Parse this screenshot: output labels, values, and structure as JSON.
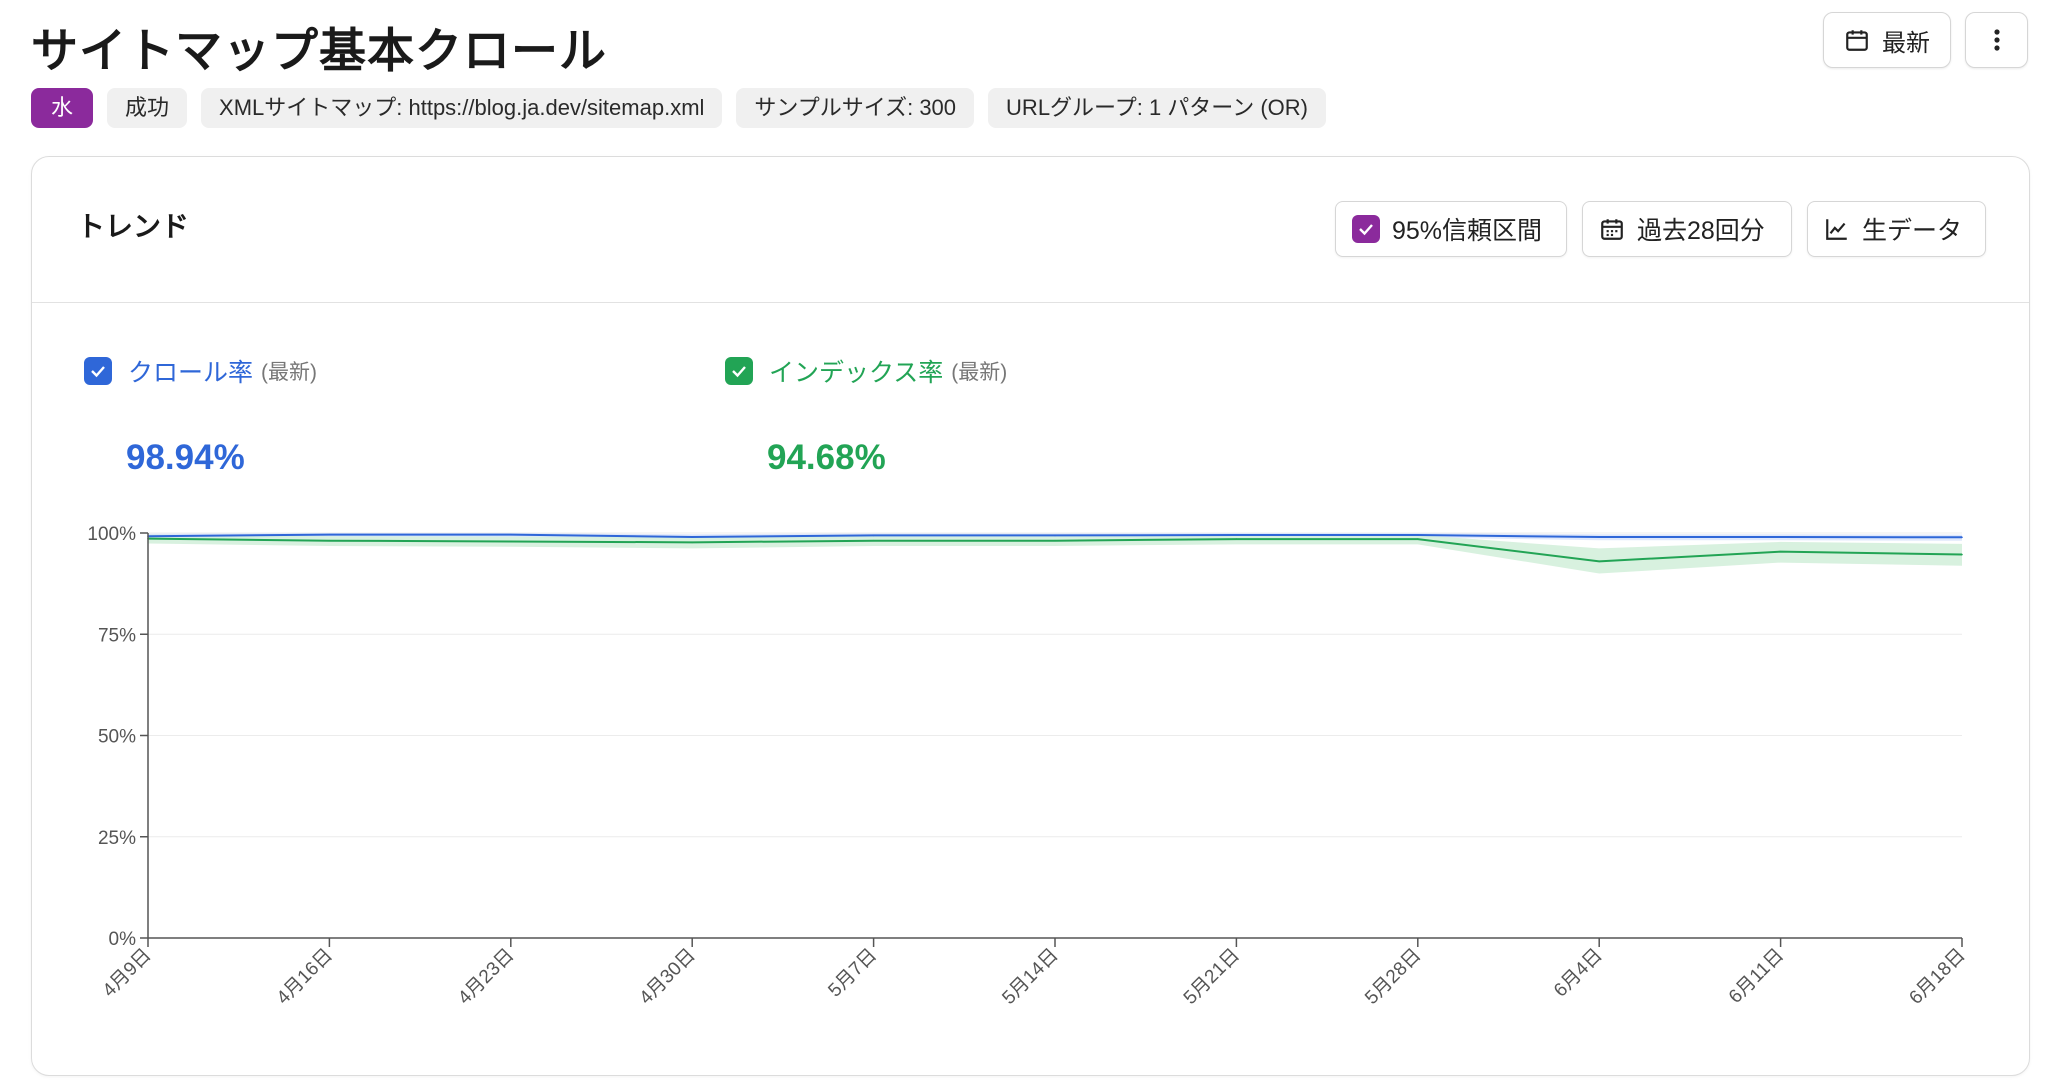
{
  "page": {
    "title": "サイトマップ基本クロール",
    "latest_button": "最新"
  },
  "tags": [
    "水",
    "成功",
    "XMLサイトマップ: https://blog.ja.dev/sitemap.xml",
    "サンプルサイズ: 300",
    "URLグループ: 1 パターン (OR)"
  ],
  "card": {
    "title": "トレンド",
    "ci_label": "95%信頼区間",
    "range_label": "過去28回分",
    "raw_label": "生データ"
  },
  "legend": {
    "crawl": {
      "name": "クロール率",
      "sub": "(最新)",
      "value": "98.94%"
    },
    "index": {
      "name": "インデックス率",
      "sub": "(最新)",
      "value": "94.68%"
    }
  },
  "colors": {
    "accent": "#8b2a9c",
    "crawl": "#2f67d8",
    "index": "#22a455",
    "crawl_band": "#dce6fb",
    "index_band": "#d4efdc"
  },
  "icons": {
    "latest": "calendar-icon",
    "more": "more-vertical-icon",
    "range": "calendar-grid-icon",
    "raw": "line-chart-icon",
    "check": "check-icon"
  },
  "chart_data": {
    "type": "line",
    "title": "トレンド",
    "ylim": [
      0,
      100
    ],
    "yticks": [
      0,
      25,
      50,
      75,
      100
    ],
    "ytick_labels": [
      "0%",
      "25%",
      "50%",
      "75%",
      "100%"
    ],
    "xticks": [
      "4月9日",
      "4月16日",
      "4月23日",
      "4月30日",
      "5月7日",
      "5月14日",
      "5月21日",
      "5月28日",
      "6月4日",
      "6月11日",
      "6月18日"
    ],
    "x": [
      0,
      7,
      14,
      21,
      28,
      35,
      42,
      49,
      56,
      63,
      70
    ],
    "series": [
      {
        "name": "クロール率",
        "values": [
          99.2,
          99.6,
          99.6,
          99.0,
          99.4,
          99.4,
          99.5,
          99.5,
          99.0,
          99.0,
          98.94
        ],
        "ci_low": [
          98.6,
          99.0,
          99.0,
          98.3,
          98.8,
          98.8,
          98.9,
          98.9,
          98.2,
          98.2,
          98.1
        ],
        "ci_high": [
          99.8,
          100,
          100,
          99.7,
          99.9,
          99.9,
          100,
          100,
          99.7,
          99.7,
          99.6
        ]
      },
      {
        "name": "インデックス率",
        "values": [
          98.6,
          98.1,
          97.9,
          97.7,
          98.1,
          98.1,
          98.5,
          98.5,
          93.0,
          95.4,
          94.68
        ],
        "ci_low": [
          97.4,
          96.8,
          96.6,
          96.2,
          96.8,
          96.8,
          97.2,
          97.2,
          90.0,
          92.7,
          91.9
        ],
        "ci_high": [
          99.6,
          99.2,
          99.1,
          99.0,
          99.2,
          99.2,
          99.5,
          99.5,
          96.2,
          97.8,
          97.3
        ]
      }
    ]
  }
}
